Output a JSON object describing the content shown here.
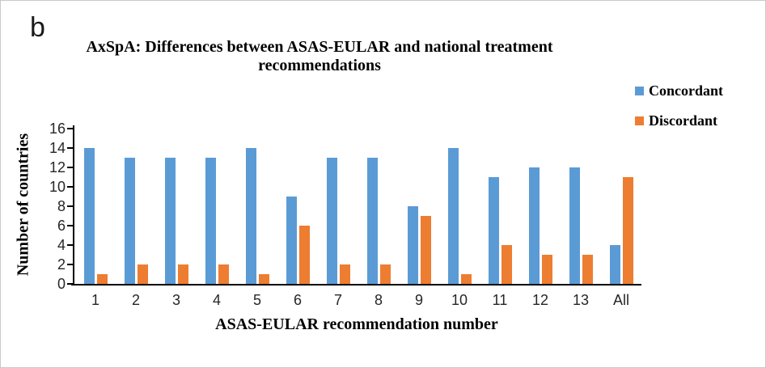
{
  "panel_label": "b",
  "colors": {
    "concordant": "#5B9BD5",
    "discordant": "#ED7D31",
    "axis_line": "#000000",
    "tick_label": "#262626",
    "frame_border": "#c9c9c9"
  },
  "chart_data": {
    "type": "bar",
    "title": "AxSpA: Differences between ASAS-EULAR and national treatment recommendations",
    "title_line1": "AxSpA: Differences between ASAS-EULAR and national treatment",
    "title_line2": "recommendations",
    "xlabel": "ASAS-EULAR recommendation number",
    "ylabel": "Number of countries",
    "categories": [
      "1",
      "2",
      "3",
      "4",
      "5",
      "6",
      "7",
      "8",
      "9",
      "10",
      "11",
      "12",
      "13",
      "All"
    ],
    "series": [
      {
        "name": "Concordant",
        "color": "#5B9BD5",
        "values": [
          14,
          13,
          13,
          13,
          14,
          9,
          13,
          13,
          8,
          14,
          11,
          12,
          12,
          4
        ]
      },
      {
        "name": "Discordant",
        "color": "#ED7D31",
        "values": [
          1,
          2,
          2,
          2,
          1,
          6,
          2,
          2,
          7,
          1,
          4,
          3,
          3,
          11
        ]
      }
    ],
    "ylim": [
      0,
      16
    ],
    "yticks": [
      0,
      2,
      4,
      6,
      8,
      10,
      12,
      14,
      16
    ],
    "grid": false,
    "legend_position": "right"
  }
}
